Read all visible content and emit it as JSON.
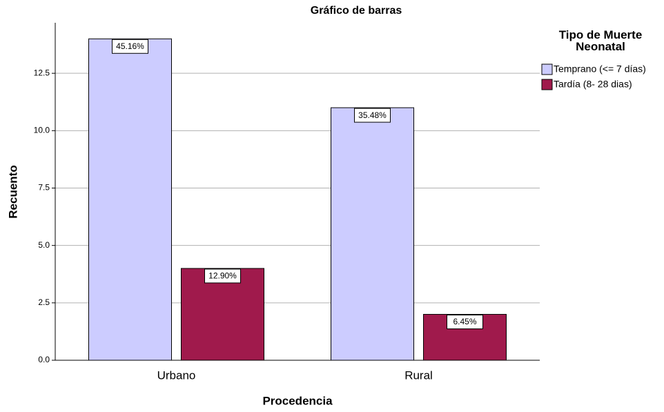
{
  "chart_data": {
    "type": "bar",
    "title": "Gráfico de barras",
    "x_label": "Procedencia",
    "y_label": "Recuento",
    "legend_title": "Tipo de Muerte Neonatal",
    "legend": "right",
    "grid": true,
    "categories": [
      "Urbano",
      "Rural"
    ],
    "series": [
      {
        "name": "Temprano (<= 7 días)",
        "color": "#ccccff",
        "values": [
          14,
          11
        ],
        "percent_values": [
          45.16,
          35.48
        ],
        "percent_labels": [
          "45.16%",
          "35.48%"
        ]
      },
      {
        "name": "Tardía (8- 28 dias)",
        "color": "#a01a4c",
        "values": [
          4,
          2
        ],
        "percent_values": [
          12.9,
          6.45
        ],
        "percent_labels": [
          "12.90%",
          "6.45%"
        ]
      }
    ],
    "ylim": [
      0,
      14.7
    ],
    "yticks": [
      {
        "value": 0,
        "label": "0.0"
      },
      2.5,
      {
        "value": 5,
        "label": "5.0"
      },
      7.5,
      {
        "value": 10,
        "label": "10.0"
      },
      12.5
    ]
  }
}
